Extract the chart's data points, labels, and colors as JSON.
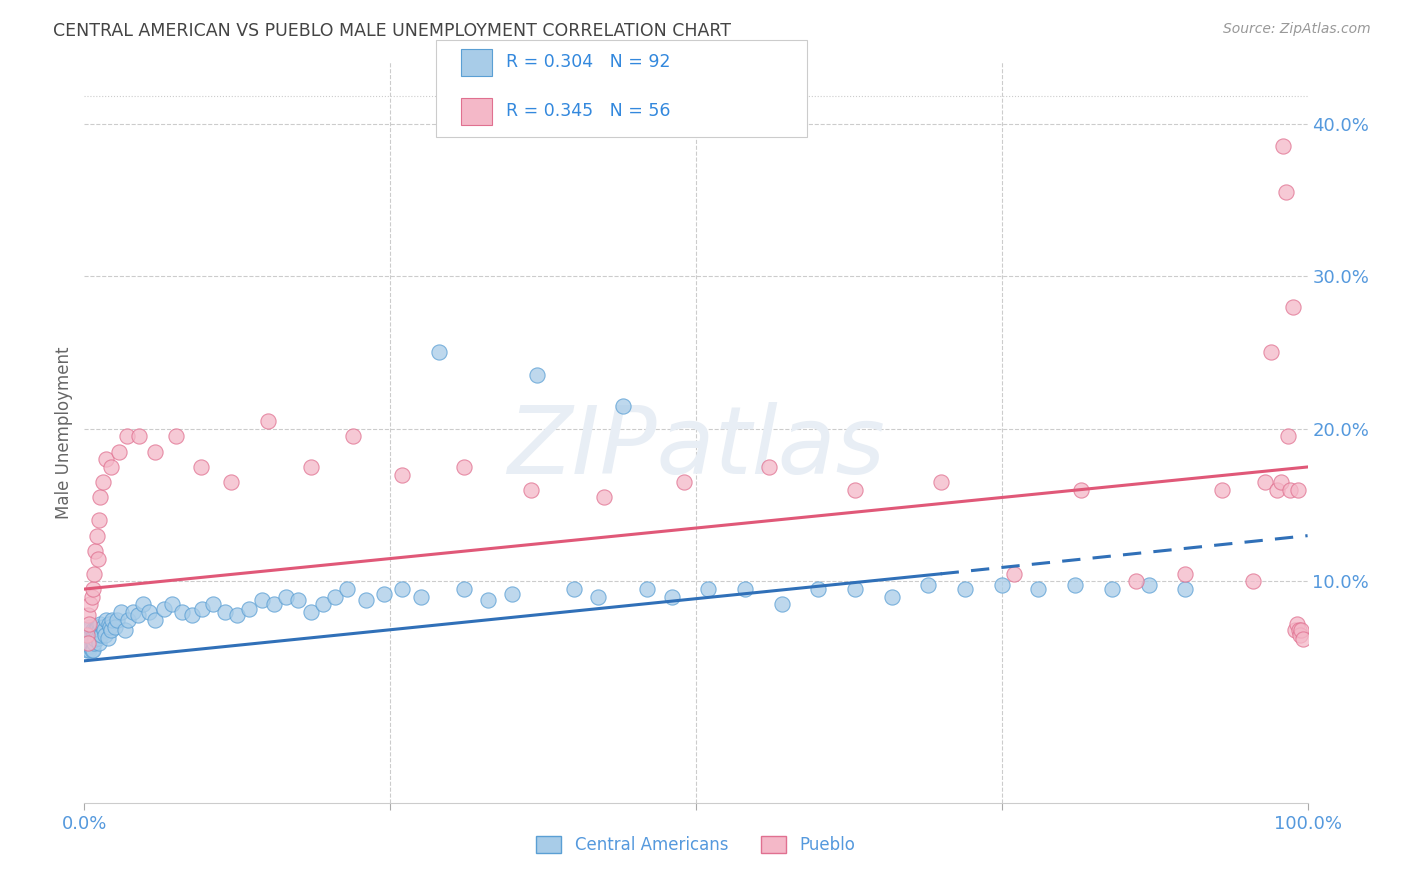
{
  "title": "CENTRAL AMERICAN VS PUEBLO MALE UNEMPLOYMENT CORRELATION CHART",
  "source": "Source: ZipAtlas.com",
  "ylabel": "Male Unemployment",
  "series1_label": "Central Americans",
  "series2_label": "Pueblo",
  "series1_R": 0.304,
  "series1_N": 92,
  "series2_R": 0.345,
  "series2_N": 56,
  "series1_fill": "#a8cce8",
  "series1_edge": "#5a9fd4",
  "series2_fill": "#f4b8c8",
  "series2_edge": "#e07090",
  "trend1_color": "#3070b8",
  "trend2_color": "#e05878",
  "watermark_text": "ZIPatlas",
  "background_color": "#ffffff",
  "grid_color": "#cccccc",
  "title_color": "#444444",
  "axis_tick_color": "#5599dd",
  "legend_text_color": "#3388dd",
  "xlim": [
    0.0,
    1.0
  ],
  "ylim": [
    -0.045,
    0.44
  ],
  "yticks": [
    0.0,
    0.1,
    0.2,
    0.3,
    0.4
  ],
  "trend1_x0": 0.0,
  "trend1_y0": 0.048,
  "trend1_x1": 0.7,
  "trend1_y1": 0.105,
  "trend1_dash_x0": 0.7,
  "trend1_dash_y0": 0.105,
  "trend1_dash_x1": 1.0,
  "trend1_dash_y1": 0.13,
  "trend2_x0": 0.0,
  "trend2_y0": 0.095,
  "trend2_x1": 1.0,
  "trend2_y1": 0.175,
  "s1_x": [
    0.002,
    0.002,
    0.003,
    0.003,
    0.003,
    0.004,
    0.004,
    0.004,
    0.005,
    0.005,
    0.005,
    0.006,
    0.006,
    0.007,
    0.007,
    0.007,
    0.008,
    0.008,
    0.009,
    0.009,
    0.01,
    0.01,
    0.011,
    0.011,
    0.012,
    0.012,
    0.013,
    0.014,
    0.015,
    0.016,
    0.017,
    0.018,
    0.019,
    0.02,
    0.021,
    0.022,
    0.023,
    0.025,
    0.027,
    0.03,
    0.033,
    0.036,
    0.04,
    0.044,
    0.048,
    0.053,
    0.058,
    0.065,
    0.072,
    0.08,
    0.088,
    0.096,
    0.105,
    0.115,
    0.125,
    0.135,
    0.145,
    0.155,
    0.165,
    0.175,
    0.185,
    0.195,
    0.205,
    0.215,
    0.23,
    0.245,
    0.26,
    0.275,
    0.29,
    0.31,
    0.33,
    0.35,
    0.37,
    0.4,
    0.42,
    0.44,
    0.46,
    0.48,
    0.51,
    0.54,
    0.57,
    0.6,
    0.63,
    0.66,
    0.69,
    0.72,
    0.75,
    0.78,
    0.81,
    0.84,
    0.87,
    0.9
  ],
  "s1_y": [
    0.055,
    0.06,
    0.058,
    0.065,
    0.062,
    0.06,
    0.068,
    0.055,
    0.065,
    0.07,
    0.058,
    0.063,
    0.055,
    0.068,
    0.06,
    0.055,
    0.065,
    0.06,
    0.068,
    0.062,
    0.07,
    0.065,
    0.063,
    0.07,
    0.068,
    0.06,
    0.072,
    0.065,
    0.07,
    0.068,
    0.065,
    0.075,
    0.063,
    0.072,
    0.07,
    0.068,
    0.075,
    0.07,
    0.075,
    0.08,
    0.068,
    0.075,
    0.08,
    0.078,
    0.085,
    0.08,
    0.075,
    0.082,
    0.085,
    0.08,
    0.078,
    0.082,
    0.085,
    0.08,
    0.078,
    0.082,
    0.088,
    0.085,
    0.09,
    0.088,
    0.08,
    0.085,
    0.09,
    0.095,
    0.088,
    0.092,
    0.095,
    0.09,
    0.25,
    0.095,
    0.088,
    0.092,
    0.235,
    0.095,
    0.09,
    0.215,
    0.095,
    0.09,
    0.095,
    0.095,
    0.085,
    0.095,
    0.095,
    0.09,
    0.098,
    0.095,
    0.098,
    0.095,
    0.098,
    0.095,
    0.098,
    0.095
  ],
  "s2_x": [
    0.002,
    0.003,
    0.003,
    0.004,
    0.005,
    0.006,
    0.007,
    0.008,
    0.009,
    0.01,
    0.011,
    0.012,
    0.013,
    0.015,
    0.018,
    0.022,
    0.028,
    0.035,
    0.045,
    0.058,
    0.075,
    0.095,
    0.12,
    0.15,
    0.185,
    0.22,
    0.26,
    0.31,
    0.365,
    0.425,
    0.49,
    0.56,
    0.63,
    0.7,
    0.76,
    0.815,
    0.86,
    0.9,
    0.93,
    0.955,
    0.965,
    0.97,
    0.975,
    0.978,
    0.98,
    0.982,
    0.984,
    0.986,
    0.988,
    0.99,
    0.991,
    0.992,
    0.993,
    0.994,
    0.995,
    0.996
  ],
  "s2_y": [
    0.065,
    0.06,
    0.078,
    0.072,
    0.085,
    0.09,
    0.095,
    0.105,
    0.12,
    0.13,
    0.115,
    0.14,
    0.155,
    0.165,
    0.18,
    0.175,
    0.185,
    0.195,
    0.195,
    0.185,
    0.195,
    0.175,
    0.165,
    0.205,
    0.175,
    0.195,
    0.17,
    0.175,
    0.16,
    0.155,
    0.165,
    0.175,
    0.16,
    0.165,
    0.105,
    0.16,
    0.1,
    0.105,
    0.16,
    0.1,
    0.165,
    0.25,
    0.16,
    0.165,
    0.385,
    0.355,
    0.195,
    0.16,
    0.28,
    0.068,
    0.072,
    0.16,
    0.068,
    0.065,
    0.068,
    0.062
  ]
}
